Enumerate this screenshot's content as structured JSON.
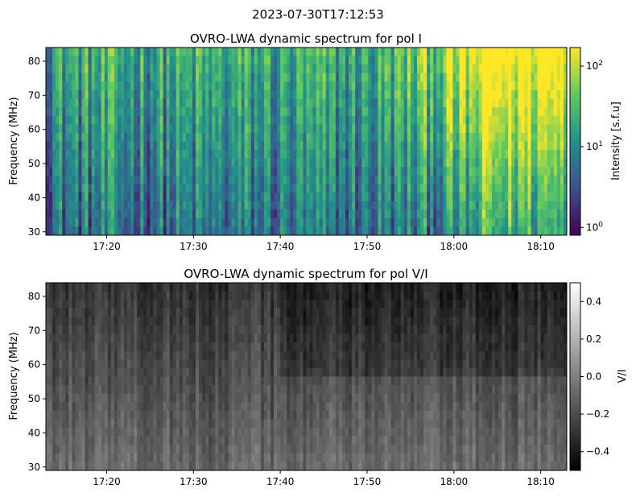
{
  "figure": {
    "suptitle": "2023-07-30T17:12:53"
  },
  "chart_data": [
    {
      "type": "heatmap",
      "title": "OVRO-LWA dynamic spectrum for pol I",
      "xlabel": "",
      "ylabel": "Frequency (MHz)",
      "x_ticks": [
        "17:20",
        "17:30",
        "17:40",
        "17:50",
        "18:00",
        "18:10"
      ],
      "x_tick_minutes": [
        20,
        30,
        40,
        50,
        60,
        70
      ],
      "x_range_minutes": [
        13,
        73
      ],
      "y_ticks": [
        30,
        40,
        50,
        60,
        70,
        80
      ],
      "ylim": [
        29,
        84
      ],
      "colormap": "viridis",
      "color_scale": "log",
      "colorbar": {
        "label": "Intensity [s.f.u]",
        "ticks": [
          {
            "base": "10",
            "exp": "0",
            "value": 1
          },
          {
            "base": "10",
            "exp": "1",
            "value": 10
          },
          {
            "base": "10",
            "exp": "2",
            "value": 100
          }
        ],
        "range": [
          0.8,
          170
        ]
      }
    },
    {
      "type": "heatmap",
      "title": "OVRO-LWA dynamic spectrum for pol V/I",
      "xlabel": "",
      "ylabel": "Frequency (MHz)",
      "x_ticks": [
        "17:20",
        "17:30",
        "17:40",
        "17:50",
        "18:00",
        "18:10"
      ],
      "x_tick_minutes": [
        20,
        30,
        40,
        50,
        60,
        70
      ],
      "x_range_minutes": [
        13,
        73
      ],
      "y_ticks": [
        30,
        40,
        50,
        60,
        70,
        80
      ],
      "ylim": [
        29,
        84
      ],
      "colormap": "gray",
      "color_scale": "linear",
      "colorbar": {
        "label": "V/I",
        "ticks": [
          {
            "label": "0.4",
            "value": 0.4
          },
          {
            "label": "0.2",
            "value": 0.2
          },
          {
            "label": "0.0",
            "value": 0.0
          },
          {
            "label": "−0.2",
            "value": -0.2
          },
          {
            "label": "−0.4",
            "value": -0.4
          }
        ],
        "range": [
          -0.5,
          0.5
        ]
      }
    }
  ]
}
